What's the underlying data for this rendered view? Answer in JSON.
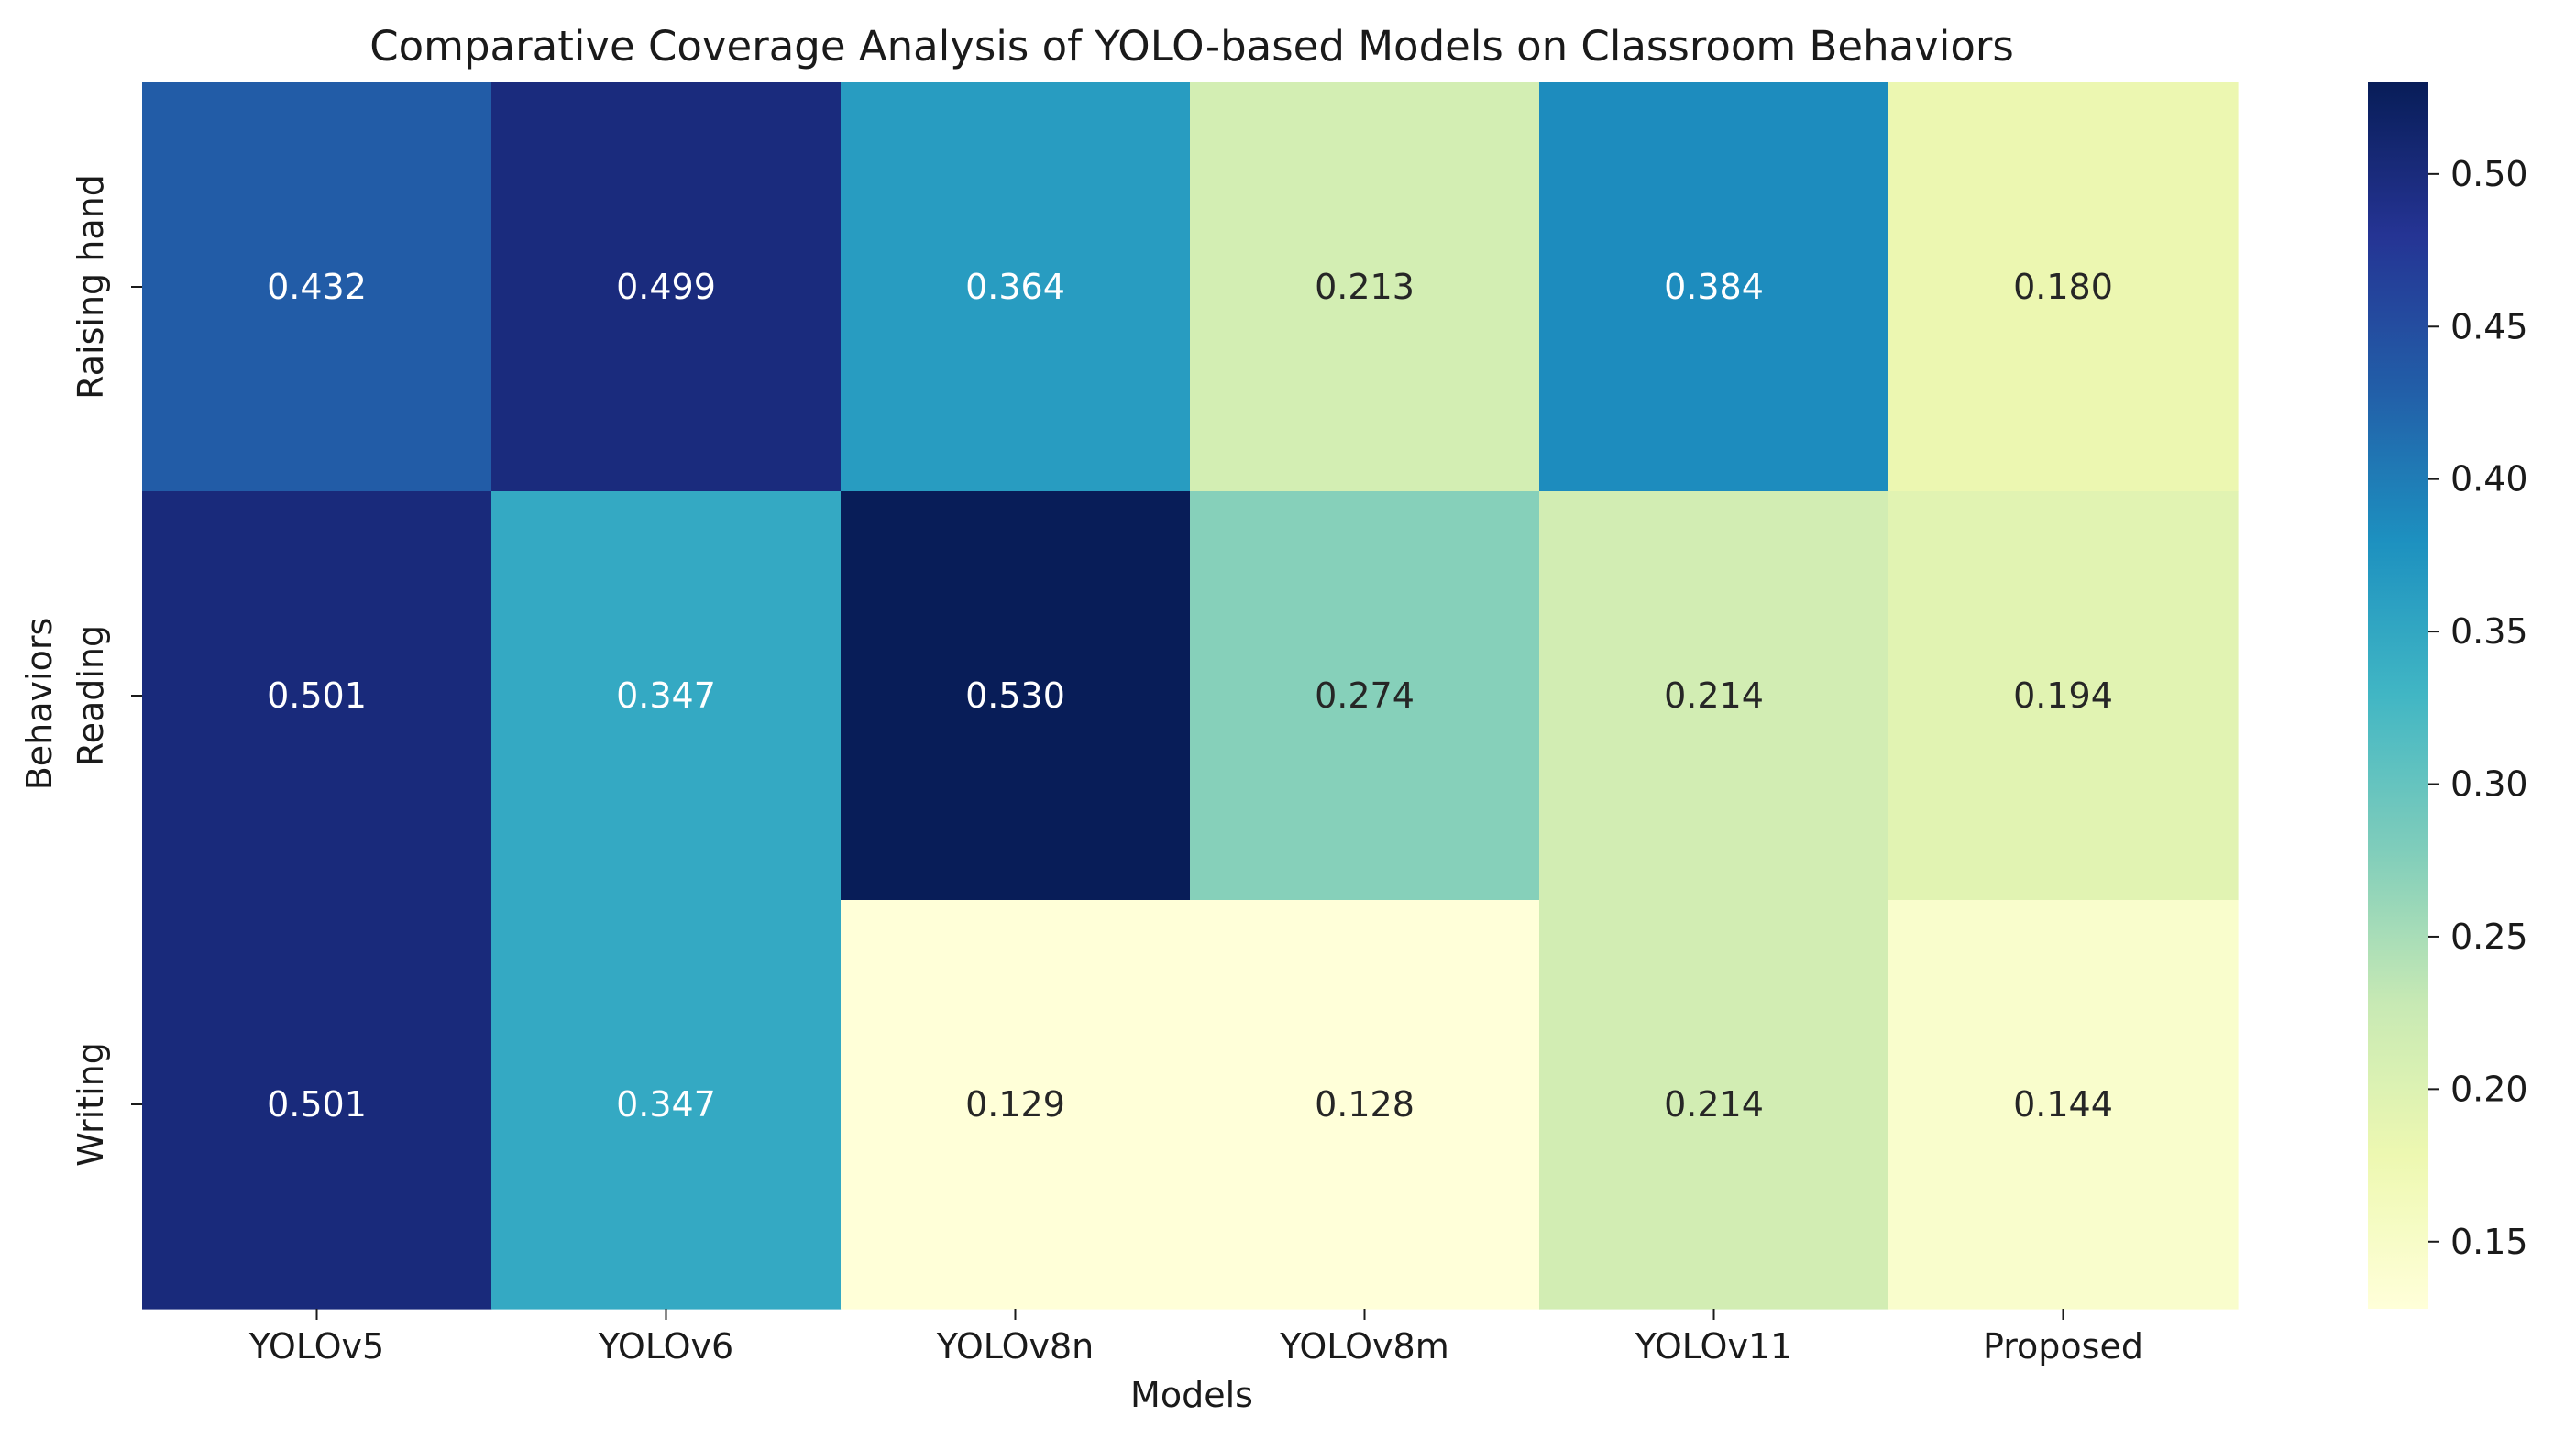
{
  "chart_data": {
    "type": "heatmap",
    "title": "Comparative Coverage Analysis of YOLO-based Models on Classroom Behaviors",
    "xlabel": "Models",
    "ylabel": "Behaviors",
    "x_categories": [
      "YOLOv5",
      "YOLOv6",
      "YOLOv8n",
      "YOLOv8m",
      "YOLOv11",
      "Proposed"
    ],
    "y_categories": [
      "Raising hand",
      "Reading",
      "Writing"
    ],
    "values": [
      [
        0.432,
        0.499,
        0.364,
        0.213,
        0.384,
        0.18
      ],
      [
        0.501,
        0.347,
        0.53,
        0.274,
        0.214,
        0.194
      ],
      [
        0.501,
        0.347,
        0.129,
        0.128,
        0.214,
        0.144
      ]
    ],
    "value_labels": [
      [
        "0.432",
        "0.499",
        "0.364",
        "0.213",
        "0.384",
        "0.180"
      ],
      [
        "0.501",
        "0.347",
        "0.530",
        "0.274",
        "0.214",
        "0.194"
      ],
      [
        "0.501",
        "0.347",
        "0.129",
        "0.128",
        "0.214",
        "0.144"
      ]
    ],
    "colorbar": {
      "colormap": "YlGnBu",
      "range": [
        0.128,
        0.53
      ],
      "ticks": [
        0.15,
        0.2,
        0.25,
        0.3,
        0.35,
        0.4,
        0.45,
        0.5
      ],
      "tick_labels": [
        "0.15",
        "0.20",
        "0.25",
        "0.30",
        "0.35",
        "0.40",
        "0.45",
        "0.50"
      ]
    }
  }
}
